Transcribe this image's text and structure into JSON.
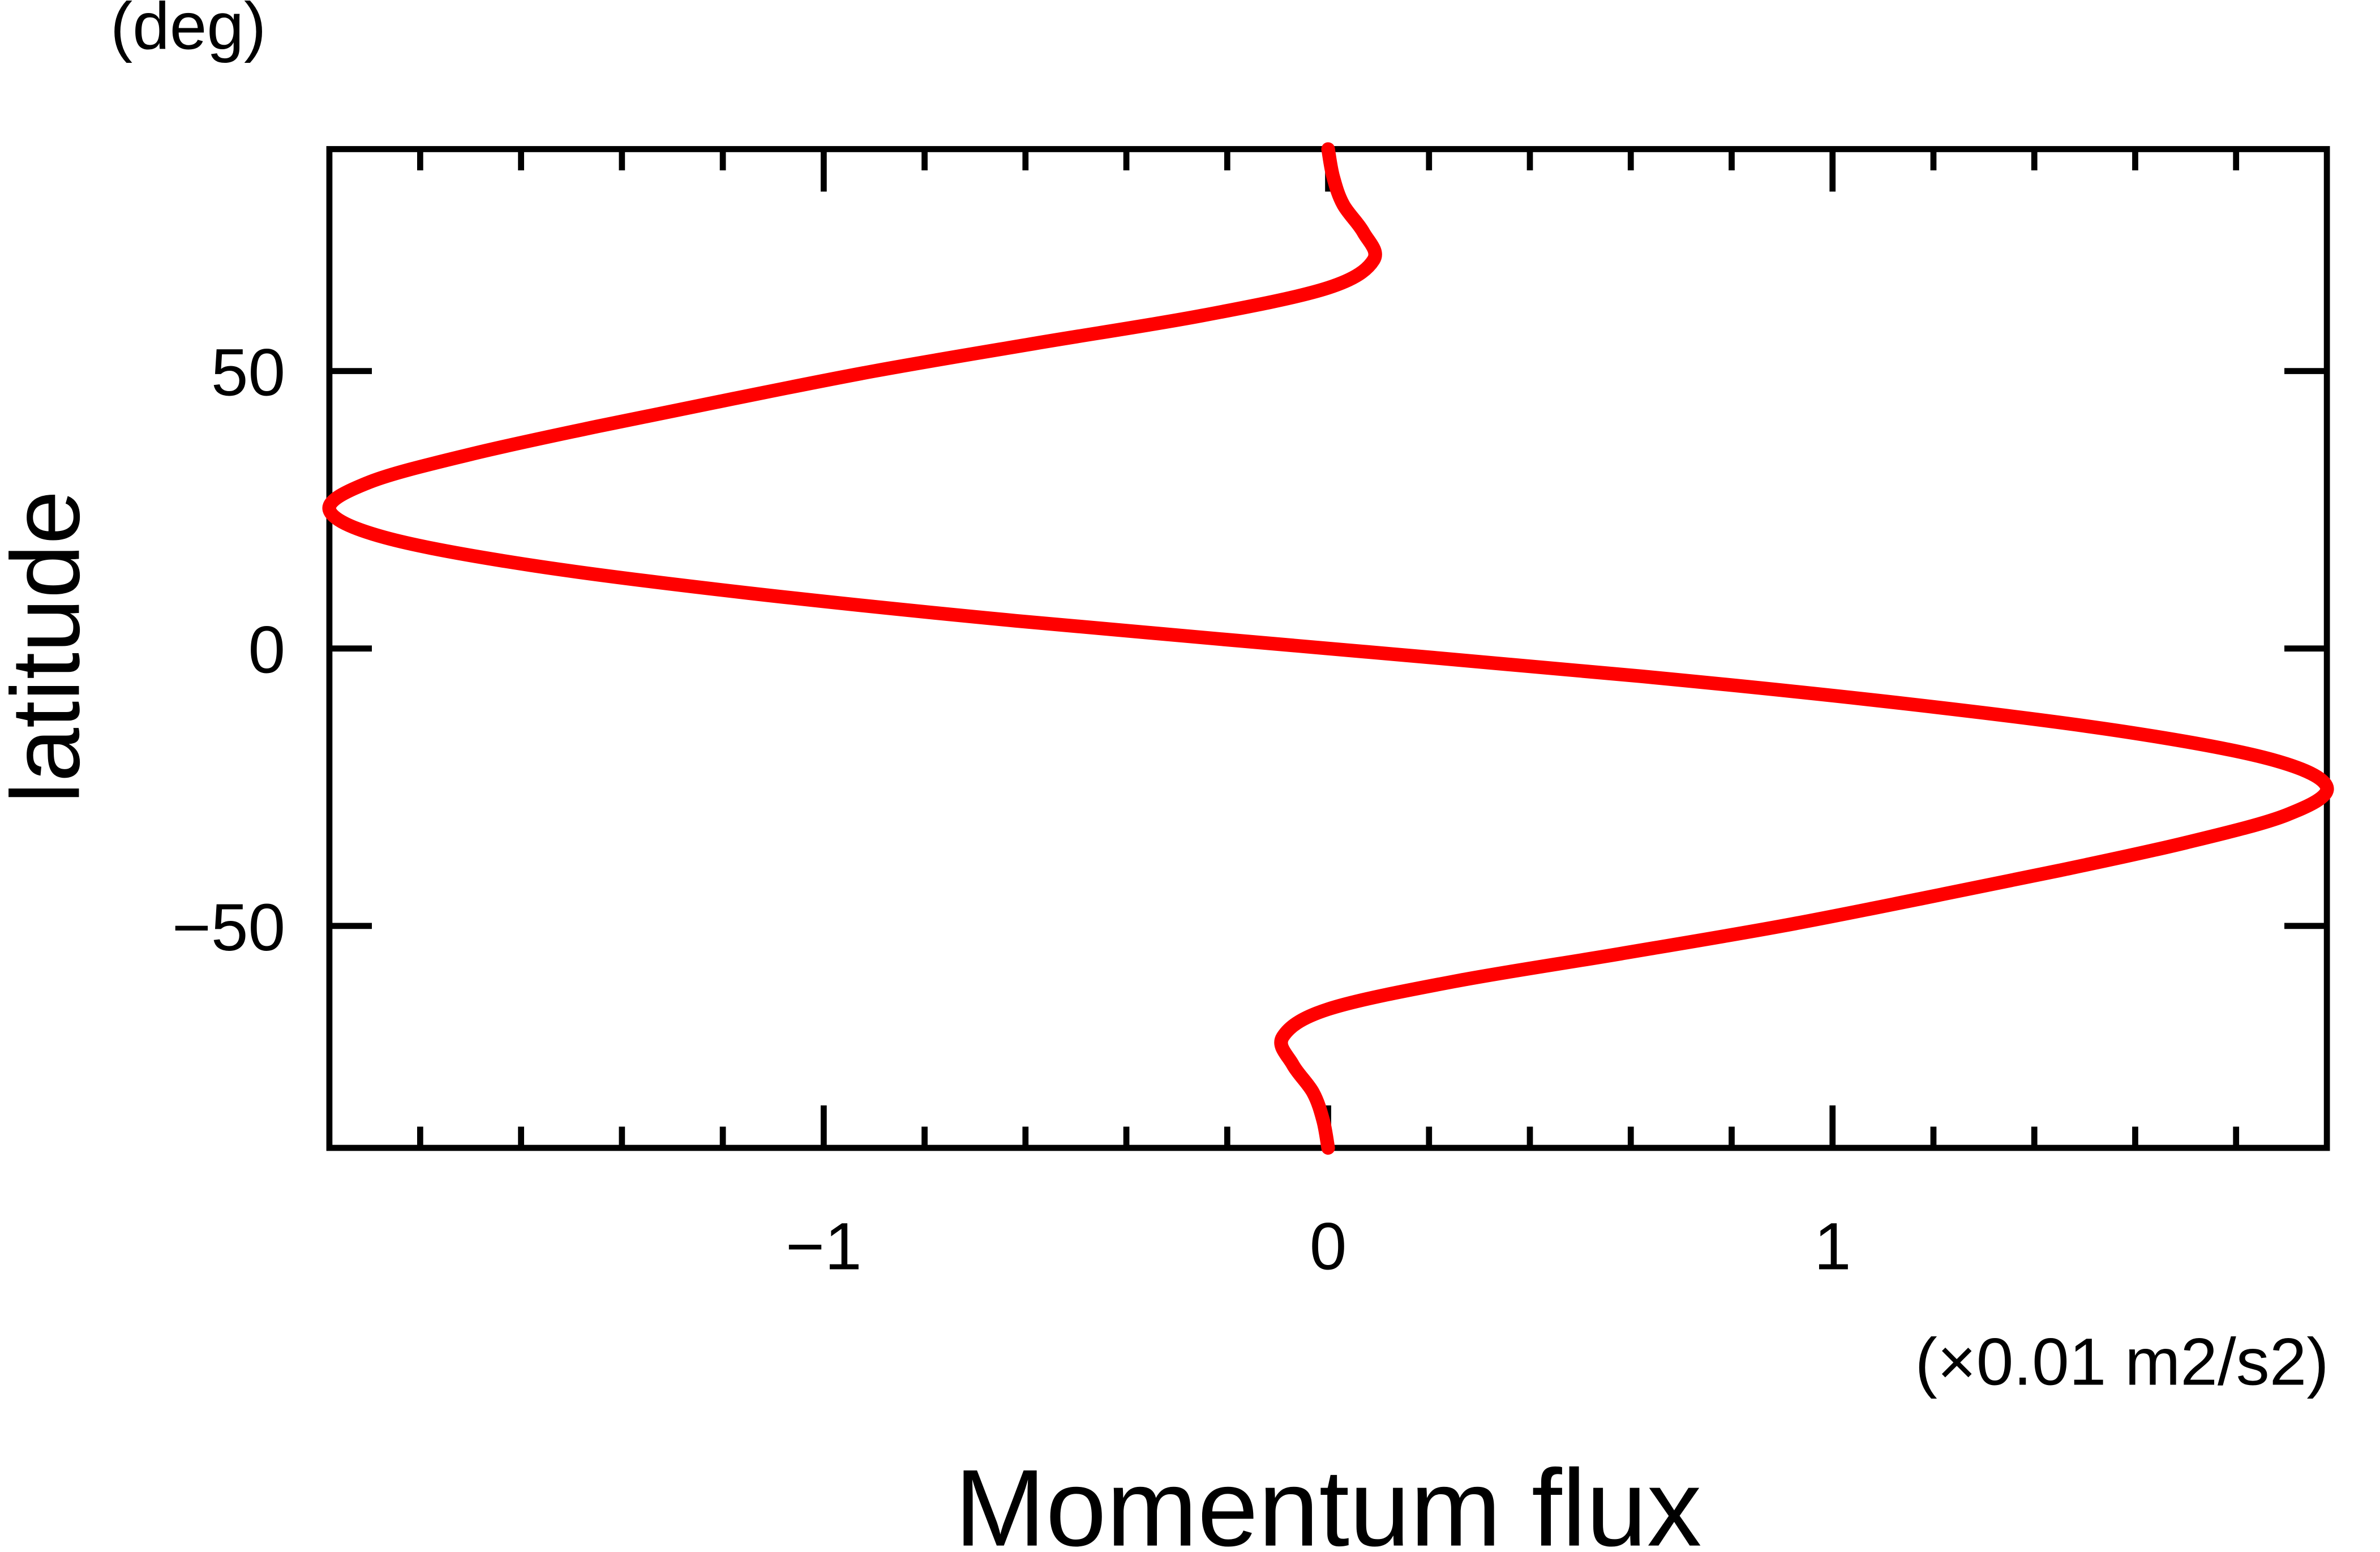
{
  "chart_data": {
    "type": "line",
    "y_unit": "(deg)",
    "ylabel": "latitude",
    "xlabel": "Momentum flux",
    "x_unit": "(×0.01 m2/s2)",
    "color": "#ff0000",
    "xlim": [
      -1.98,
      1.98
    ],
    "ylim": [
      -90,
      90
    ],
    "xticks": [
      {
        "value": -1,
        "label": "−1"
      },
      0,
      1
    ],
    "xminorticks": [
      -1.8,
      -1.6,
      -1.4,
      -1.2,
      -0.8,
      -0.6,
      -0.4,
      -0.2,
      0.2,
      0.4,
      0.6,
      0.8,
      1.2,
      1.4,
      1.6,
      1.8
    ],
    "yticks": [
      {
        "value": -50,
        "label": "−50"
      },
      0,
      50
    ],
    "y": [
      -90,
      -85,
      -80,
      -75,
      -70,
      -65,
      -60,
      -55,
      -50,
      -45,
      -40,
      -35,
      -30,
      -25,
      -20,
      -15,
      -10,
      -5,
      0,
      5,
      10,
      15,
      20,
      25,
      30,
      35,
      40,
      45,
      50,
      55,
      60,
      65,
      70,
      75,
      80,
      85,
      90
    ],
    "values": [
      0,
      -0.01,
      -0.03,
      -0.07,
      -0.09,
      0,
      0.25,
      0.58,
      0.9,
      1.18,
      1.45,
      1.7,
      1.9,
      1.98,
      1.87,
      1.58,
      1.15,
      0.62,
      0,
      -0.62,
      -1.15,
      -1.58,
      -1.87,
      -1.98,
      -1.9,
      -1.7,
      -1.45,
      -1.18,
      -0.9,
      -0.58,
      -0.25,
      0,
      0.09,
      0.07,
      0.03,
      0.01,
      0
    ]
  }
}
